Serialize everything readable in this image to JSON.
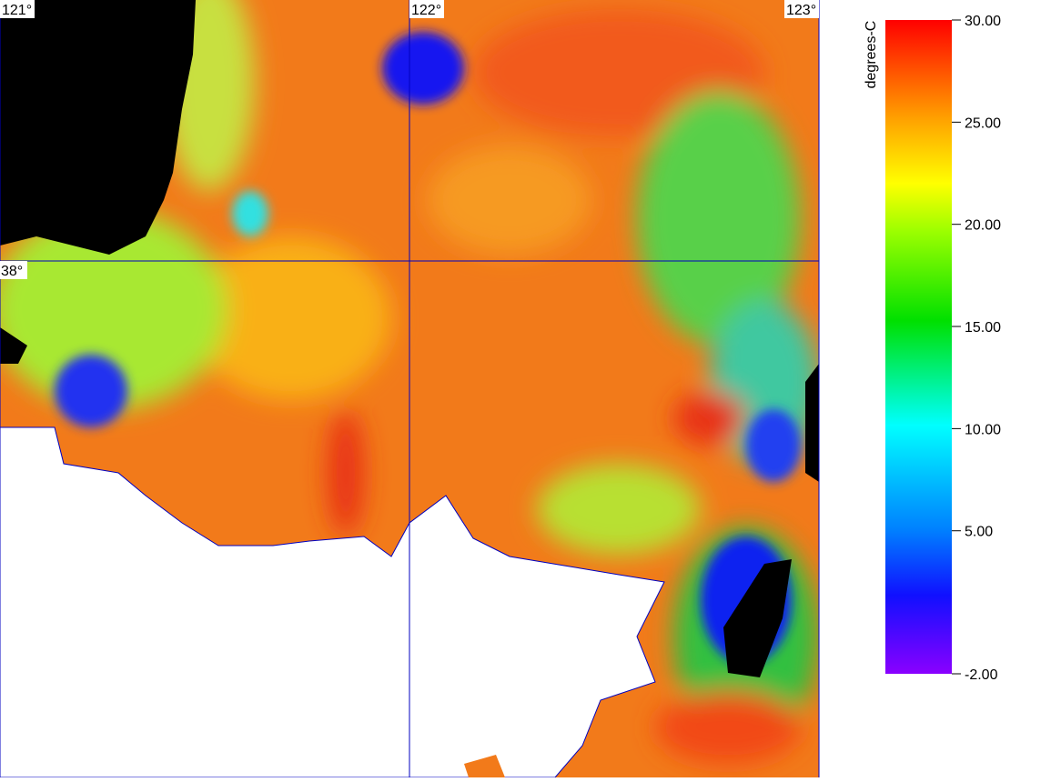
{
  "map": {
    "lon_labels": [
      {
        "value": 121,
        "label": "121°"
      },
      {
        "value": 122,
        "label": "122°"
      },
      {
        "value": 123,
        "label": "123°"
      }
    ],
    "lat_labels": [
      {
        "value": 38,
        "label": "38°"
      }
    ]
  },
  "colorbar": {
    "label": "degrees-C",
    "range": [
      -2,
      30
    ],
    "ticks": [
      {
        "value": -2,
        "label": "-2.00"
      },
      {
        "value": 5,
        "label": "5.00"
      },
      {
        "value": 10,
        "label": "10.00"
      },
      {
        "value": 15,
        "label": "15.00"
      },
      {
        "value": 20,
        "label": "20.00"
      },
      {
        "value": 25,
        "label": "25.00"
      },
      {
        "value": 30,
        "label": "30.00"
      }
    ]
  }
}
